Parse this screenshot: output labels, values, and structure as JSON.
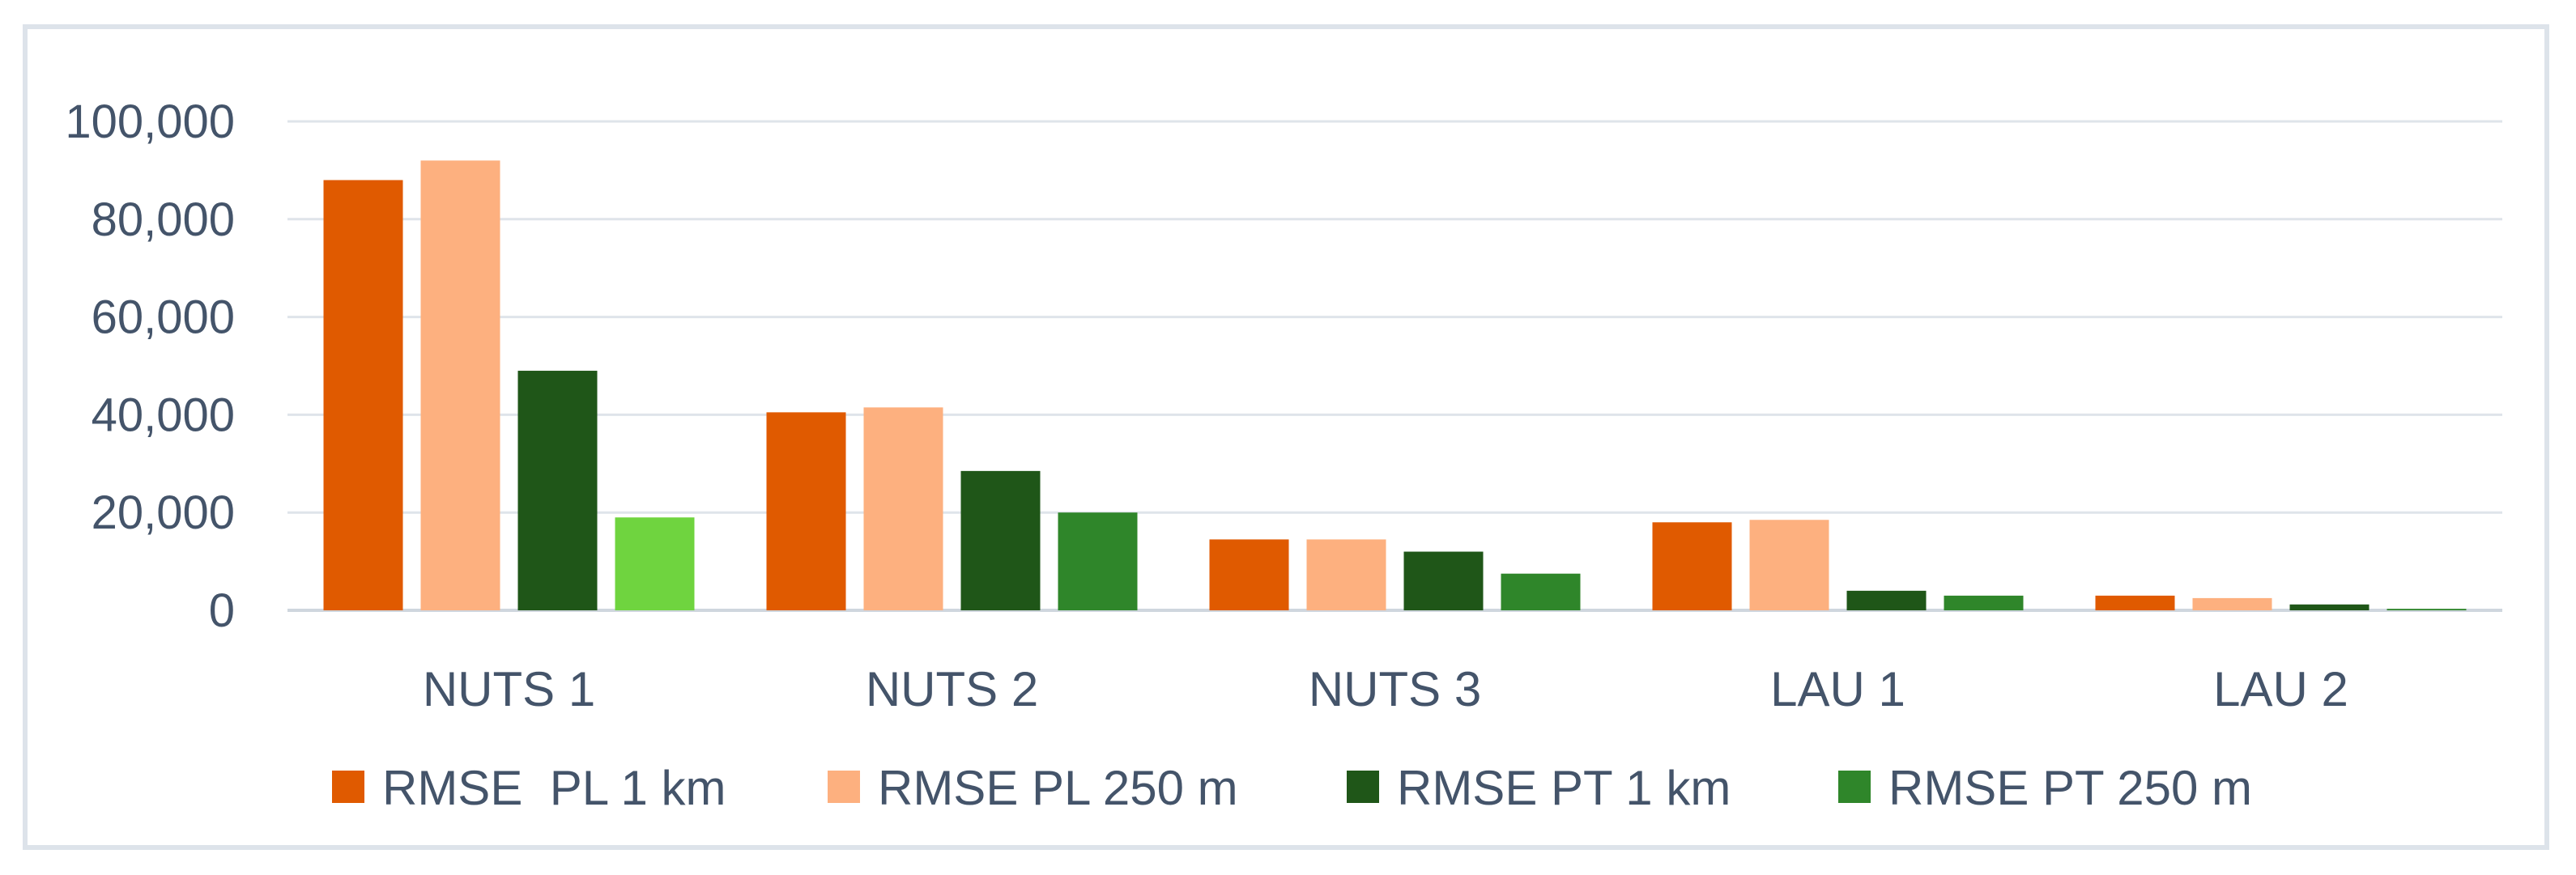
{
  "chart_data": {
    "type": "bar",
    "categories": [
      "NUTS 1",
      "NUTS 2",
      "NUTS 3",
      "LAU 1",
      "LAU 2"
    ],
    "series": [
      {
        "name": "RMSE  PL 1 km",
        "color": "#e05a00",
        "values": [
          88000,
          40500,
          14500,
          18000,
          3000
        ]
      },
      {
        "name": "RMSE PL 250 m",
        "color": "#fdb07f",
        "values": [
          92000,
          41500,
          14500,
          18500,
          2500
        ]
      },
      {
        "name": "RMSE PT 1 km",
        "color": "#1f5618",
        "values": [
          49000,
          28500,
          12000,
          4000,
          1200
        ]
      },
      {
        "name": "RMSE PT 250 m",
        "color": "#2f862a",
        "values": [
          19000,
          20000,
          7500,
          3000,
          300
        ]
      }
    ],
    "highlight": {
      "series": 3,
      "category": 0,
      "color": "#6fd43f"
    },
    "ylim": [
      0,
      100000
    ],
    "yticks": [
      "0",
      "20,000",
      "40,000",
      "60,000",
      "80,000",
      "100,000"
    ],
    "ytick_values": [
      0,
      20000,
      40000,
      60000,
      80000,
      100000
    ],
    "grid": true,
    "legend_position": "bottom",
    "title": "",
    "xlabel": "",
    "ylabel": ""
  }
}
